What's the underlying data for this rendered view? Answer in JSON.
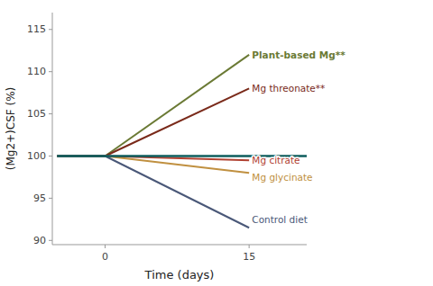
{
  "chart_data": {
    "type": "line",
    "xlabel": "Time (days)",
    "ylabel": "(Mg2+)CSF (%)",
    "xlim": [
      -5.5,
      21
    ],
    "ylim": [
      89.5,
      117
    ],
    "xticks": [
      0,
      15
    ],
    "yticks": [
      90,
      95,
      100,
      105,
      110,
      115
    ],
    "x": [
      -5,
      0,
      15
    ],
    "series": [
      {
        "color": "#6b7a35",
        "values": [
          100,
          100,
          112.0
        ]
      },
      {
        "color": "#7a2a1a",
        "values": [
          100,
          100,
          108.0
        ]
      },
      {
        "color": "#b04030",
        "values": [
          100,
          100,
          99.5
        ]
      },
      {
        "color": "#c09040",
        "values": [
          100,
          100,
          98.0
        ]
      },
      {
        "color": "#4a5878",
        "values": [
          100,
          100,
          91.5
        ]
      }
    ],
    "baseline": {
      "color": "#0d5c5c",
      "x": [
        -5,
        21
      ],
      "values": [
        100,
        100
      ]
    },
    "annotations": [
      {
        "text": "Plant-based Mg**",
        "x": 15.3,
        "y": 112.0,
        "color": "#6b7a35"
      },
      {
        "text": "Mg threonate**",
        "x": 15.3,
        "y": 108.0,
        "color": "#7a2a1a"
      },
      {
        "text": "Mg citrate",
        "x": 15.3,
        "y": 99.5,
        "color": "#b04030"
      },
      {
        "text": "Mg glycinate",
        "x": 15.3,
        "y": 97.5,
        "color": "#c09040"
      },
      {
        "text": "Control diet",
        "x": 15.3,
        "y": 92.5,
        "color": "#4a5878"
      }
    ]
  }
}
